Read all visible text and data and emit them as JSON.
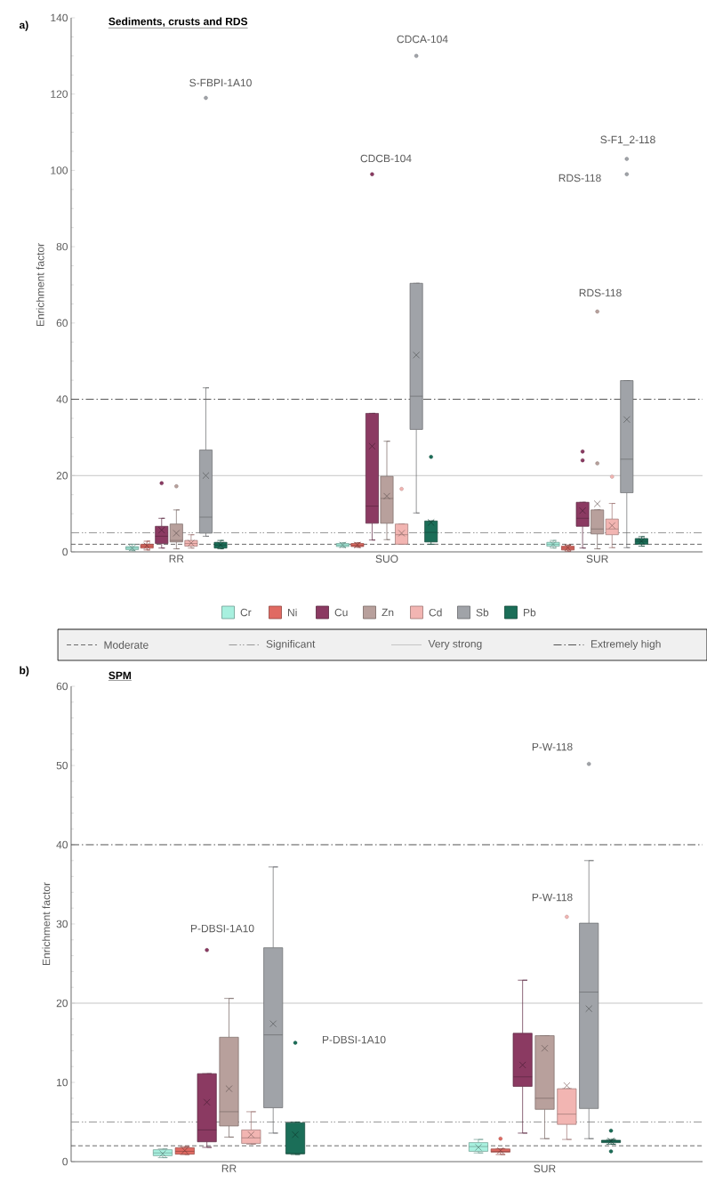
{
  "chart_data": [
    {
      "type": "box",
      "title": "Sediments, crusts and RDS",
      "ylabel": "Enrichment factor",
      "categories": [
        "RR",
        "SUO",
        "SUR"
      ],
      "ylim": [
        0,
        140
      ],
      "yticks": [
        0,
        20,
        40,
        60,
        80,
        100,
        120,
        140
      ],
      "legend": "bottom",
      "series": [
        {
          "name": "Cr",
          "color": "#a8f0df",
          "boxes": [
            {
              "low": 0.3,
              "q1": 0.6,
              "median": 1,
              "q3": 1.4,
              "high": 2,
              "mean": 1
            },
            {
              "low": 1.2,
              "q1": 1.4,
              "median": 1.8,
              "q3": 2.2,
              "high": 2.4,
              "mean": 1.8
            },
            {
              "low": 1,
              "q1": 1.5,
              "median": 2,
              "q3": 2.5,
              "high": 3,
              "mean": 2
            }
          ]
        },
        {
          "name": "Ni",
          "color": "#e06a62",
          "boxes": [
            {
              "low": 0.5,
              "q1": 1,
              "median": 1.5,
              "q3": 2,
              "high": 2.8,
              "mean": 1.6
            },
            {
              "low": 1.2,
              "q1": 1.4,
              "median": 1.7,
              "q3": 2.2,
              "high": 2.4,
              "mean": 1.8
            },
            {
              "low": 0.2,
              "q1": 0.5,
              "median": 1,
              "q3": 1.5,
              "high": 1.8,
              "mean": 1.1
            }
          ]
        },
        {
          "name": "Cu",
          "color": "#8b3a62",
          "boxes": [
            {
              "low": 1,
              "q1": 2.2,
              "median": 4.1,
              "q3": 6.7,
              "high": 8.8,
              "mean": 5.7,
              "outliers": [
                18
              ]
            },
            {
              "low": 3.1,
              "q1": 7.5,
              "median": 12,
              "q3": 36.3,
              "high": 36.3,
              "mean": 27.7,
              "outliers": [
                99
              ]
            },
            {
              "low": 1,
              "q1": 6.7,
              "median": 8.8,
              "q3": 13,
              "high": 13,
              "mean": 10.8,
              "outliers": [
                24,
                26.3
              ]
            }
          ]
        },
        {
          "name": "Zn",
          "color": "#b8a09c",
          "boxes": [
            {
              "low": 0.8,
              "q1": 2.6,
              "median": 3,
              "q3": 7.3,
              "high": 11,
              "mean": 4.9,
              "outliers": [
                17.2
              ]
            },
            {
              "low": 3.2,
              "q1": 7.5,
              "median": 14,
              "q3": 19.8,
              "high": 29,
              "mean": 14.6
            },
            {
              "low": 0.8,
              "q1": 4.7,
              "median": 6,
              "q3": 11,
              "high": 11,
              "mean": 12.6,
              "outliers": [
                23.2,
                63
              ]
            }
          ]
        },
        {
          "name": "Cd",
          "color": "#f2b5b2",
          "boxes": [
            {
              "low": 1,
              "q1": 1.5,
              "median": 2.2,
              "q3": 3,
              "high": 4.5,
              "mean": 2.3
            },
            {
              "low": 2,
              "q1": 2,
              "median": 4.5,
              "q3": 7.3,
              "high": 7.3,
              "mean": 4.9,
              "outliers": [
                16.5
              ]
            },
            {
              "low": 1.1,
              "q1": 4.5,
              "median": 6,
              "q3": 8.6,
              "high": 12.7,
              "mean": 6.9,
              "outliers": [
                19.7
              ]
            }
          ]
        },
        {
          "name": "Sb",
          "color": "#a0a3a8",
          "boxes": [
            {
              "low": 4.1,
              "q1": 4.9,
              "median": 9.1,
              "q3": 26.7,
              "high": 43,
              "mean": 20,
              "outliers": [
                119
              ]
            },
            {
              "low": 10.2,
              "q1": 32.1,
              "median": 40.8,
              "q3": 70.4,
              "high": 70.4,
              "mean": 51.6,
              "outliers": [
                130
              ]
            },
            {
              "low": 1.1,
              "q1": 15.5,
              "median": 24.3,
              "q3": 44.9,
              "high": 44.9,
              "mean": 34.7,
              "outliers": [
                99,
                103
              ]
            }
          ]
        },
        {
          "name": "Pb",
          "color": "#1b6e58",
          "boxes": [
            {
              "low": 0.8,
              "q1": 1,
              "median": 1.8,
              "q3": 2.5,
              "high": 3,
              "mean": 1.8
            },
            {
              "low": 2,
              "q1": 2.6,
              "median": 5.1,
              "q3": 8.1,
              "high": 8.1,
              "mean": 7.7,
              "outliers": [
                24.9
              ]
            },
            {
              "low": 1.5,
              "q1": 2,
              "median": 2.8,
              "q3": 3.5,
              "high": 4,
              "mean": 2.8
            }
          ]
        }
      ],
      "ref_lines": [
        {
          "axis": "y",
          "value": 2,
          "label": "Moderate",
          "color": "#595959",
          "line_style": "dashed"
        },
        {
          "axis": "y",
          "value": 5,
          "label": "Significant",
          "color": "#8c8c8c",
          "line_style": "dashdotdot"
        },
        {
          "axis": "y",
          "value": 20,
          "label": "Very strong",
          "color": "#bfbfbf",
          "line_style": "solid"
        },
        {
          "axis": "y",
          "value": 40,
          "label": "Extremely high",
          "color": "#404040",
          "line_style": "dashdot"
        }
      ],
      "annotations": [
        "a)",
        "S-FBPI-1A10",
        "CDCA-104",
        "CDCB-104",
        "S-F1_2-118",
        "RDS-118",
        "RDS-118"
      ]
    },
    {
      "type": "box",
      "title": "SPM",
      "ylabel": "Enrichment factor",
      "categories": [
        "RR",
        "SUR"
      ],
      "ylim": [
        0,
        60
      ],
      "yticks": [
        0,
        10,
        20,
        30,
        40,
        50,
        60
      ],
      "series": [
        {
          "color": "#a8f0df",
          "boxes": [
            {
              "low": 0.5,
              "q1": 0.75,
              "median": 1.1,
              "q3": 1.5,
              "high": 1.6,
              "mean": 1
            },
            {
              "low": 1.1,
              "q1": 1.3,
              "median": 1.9,
              "q3": 2.4,
              "high": 2.8,
              "mean": 1.8
            }
          ]
        },
        {
          "color": "#e06a62",
          "boxes": [
            {
              "low": 0.9,
              "q1": 0.94,
              "median": 1.3,
              "q3": 1.76,
              "high": 1.9,
              "mean": 1.4
            },
            {
              "low": 0.9,
              "q1": 1.2,
              "median": 1.3,
              "q3": 1.6,
              "high": 1.6,
              "mean": 1.4,
              "outliers": [
                2.9
              ]
            }
          ]
        },
        {
          "color": "#8b3a62",
          "boxes": [
            {
              "low": 1.8,
              "q1": 2.5,
              "median": 4,
              "q3": 11.1,
              "high": 11.1,
              "mean": 7.5,
              "outliers": [
                26.7
              ]
            },
            {
              "low": 3.6,
              "q1": 9.5,
              "median": 10.7,
              "q3": 16.2,
              "high": 22.9,
              "mean": 12.2
            }
          ]
        },
        {
          "color": "#b8a09c",
          "boxes": [
            {
              "low": 3.1,
              "q1": 4.5,
              "median": 6.3,
              "q3": 15.7,
              "high": 20.6,
              "mean": 9.2
            },
            {
              "low": 2.9,
              "q1": 6.6,
              "median": 8,
              "q3": 15.9,
              "high": 15.9,
              "mean": 14.3
            }
          ]
        },
        {
          "color": "#f2b5b2",
          "boxes": [
            {
              "low": 2.2,
              "q1": 2.3,
              "median": 3,
              "q3": 4,
              "high": 6.3,
              "mean": 3.4
            },
            {
              "low": 2.8,
              "q1": 4.7,
              "median": 6,
              "q3": 9.2,
              "high": 9.2,
              "mean": 9.6,
              "outliers": [
                30.9
              ]
            }
          ]
        },
        {
          "color": "#a0a3a8",
          "boxes": [
            {
              "low": 3.6,
              "q1": 6.8,
              "median": 16,
              "q3": 27,
              "high": 37.2,
              "mean": 17.4
            },
            {
              "low": 2.9,
              "q1": 6.7,
              "median": 21.4,
              "q3": 30.1,
              "high": 38,
              "mean": 19.3,
              "outliers": [
                50.2
              ]
            }
          ]
        },
        {
          "color": "#1b6e58",
          "boxes": [
            {
              "low": 0.9,
              "q1": 1,
              "median": 1,
              "q3": 4.9,
              "high": 5,
              "mean": 3.4,
              "outliers": [
                15
              ]
            },
            {
              "low": 2.2,
              "q1": 2.4,
              "median": 2.6,
              "q3": 2.7,
              "high": 2.8,
              "mean": 2.6,
              "outliers": [
                1.3,
                3.9
              ]
            }
          ]
        }
      ],
      "ref_lines": [
        {
          "axis": "y",
          "value": 2,
          "color": "#595959",
          "line_style": "dashed"
        },
        {
          "axis": "y",
          "value": 5,
          "color": "#8c8c8c",
          "line_style": "dashdotdot"
        },
        {
          "axis": "y",
          "value": 20,
          "color": "#bfbfbf",
          "line_style": "solid"
        },
        {
          "axis": "y",
          "value": 40,
          "color": "#404040",
          "line_style": "dashdot"
        }
      ],
      "annotations": [
        "b)",
        "P-DBSI-1A10",
        "P-DBSI-1A10",
        "P-W-118",
        "P-W-118"
      ]
    }
  ]
}
